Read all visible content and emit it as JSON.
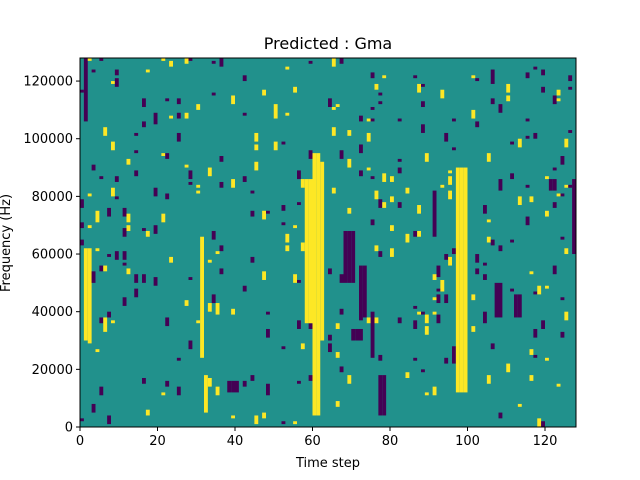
{
  "chart_data": {
    "type": "heatmap",
    "title": "Predicted : Gma",
    "xlabel": "Time step",
    "ylabel": "Frequency (Hz)",
    "xlim": [
      0,
      128
    ],
    "ylim": [
      0,
      128000
    ],
    "x_ticks": [
      0,
      20,
      40,
      60,
      80,
      100,
      120
    ],
    "y_ticks": [
      0,
      20000,
      40000,
      60000,
      80000,
      100000,
      120000
    ],
    "x_tick_labels": [
      "0",
      "20",
      "40",
      "60",
      "80",
      "100",
      "120"
    ],
    "y_tick_labels": [
      "0",
      "20000",
      "40000",
      "60000",
      "80000",
      "100000",
      "120000"
    ],
    "grid": false,
    "colormap": "viridis",
    "colors": {
      "background_level": "#21918c",
      "low_level": "#440154",
      "high_level": "#fde725"
    },
    "cells": {
      "columns": 128,
      "rows": 128,
      "background_value": 1,
      "low_value": 0,
      "high_value": 2,
      "high_bands": [
        {
          "t": [
            1,
            3
          ],
          "f": [
            30000,
            62000
          ]
        },
        {
          "t": [
            31,
            32
          ],
          "f": [
            24000,
            66000
          ]
        },
        {
          "t": [
            32,
            33
          ],
          "f": [
            5000,
            18000
          ]
        },
        {
          "t": [
            60,
            62
          ],
          "f": [
            4000,
            95000
          ]
        },
        {
          "t": [
            58,
            61
          ],
          "f": [
            36000,
            86000
          ]
        },
        {
          "t": [
            62,
            63
          ],
          "f": [
            30000,
            92000
          ]
        },
        {
          "t": [
            97,
            100
          ],
          "f": [
            12000,
            90000
          ]
        },
        {
          "t": [
            98,
            99
          ],
          "f": [
            35000,
            85000
          ]
        }
      ],
      "low_bands": [
        {
          "t": [
            1,
            2
          ],
          "f": [
            106000,
            128000
          ]
        },
        {
          "t": [
            38,
            41
          ],
          "f": [
            12000,
            16000
          ]
        },
        {
          "t": [
            68,
            71
          ],
          "f": [
            50000,
            68000
          ]
        },
        {
          "t": [
            70,
            73
          ],
          "f": [
            30000,
            34000
          ]
        },
        {
          "t": [
            72,
            74
          ],
          "f": [
            38000,
            56000
          ]
        },
        {
          "t": [
            75,
            76
          ],
          "f": [
            24000,
            40000
          ]
        },
        {
          "t": [
            77,
            79
          ],
          "f": [
            4000,
            18000
          ]
        },
        {
          "t": [
            91,
            92
          ],
          "f": [
            66000,
            82000
          ]
        },
        {
          "t": [
            107,
            109
          ],
          "f": [
            38000,
            50000
          ]
        },
        {
          "t": [
            112,
            114
          ],
          "f": [
            38000,
            46000
          ]
        },
        {
          "t": [
            121,
            123
          ],
          "f": [
            82000,
            86000
          ]
        },
        {
          "t": [
            127,
            128
          ],
          "f": [
            60000,
            86000
          ]
        }
      ],
      "sparse_high_columns": [
        2,
        4,
        6,
        8,
        12,
        17,
        21,
        23,
        27,
        30,
        33,
        35,
        39,
        45,
        47,
        50,
        53,
        55,
        57,
        65,
        66,
        69,
        74,
        76,
        78,
        80,
        84,
        87,
        89,
        91,
        93,
        95,
        101,
        105,
        110,
        113,
        116,
        118,
        120,
        123,
        125
      ],
      "sparse_low_columns": [
        0,
        3,
        5,
        7,
        9,
        11,
        14,
        16,
        19,
        22,
        25,
        28,
        34,
        36,
        42,
        44,
        48,
        52,
        56,
        59,
        64,
        67,
        72,
        75,
        77,
        82,
        86,
        88,
        92,
        94,
        96,
        102,
        104,
        106,
        108,
        111,
        115,
        117,
        119,
        122,
        124,
        126
      ]
    }
  }
}
